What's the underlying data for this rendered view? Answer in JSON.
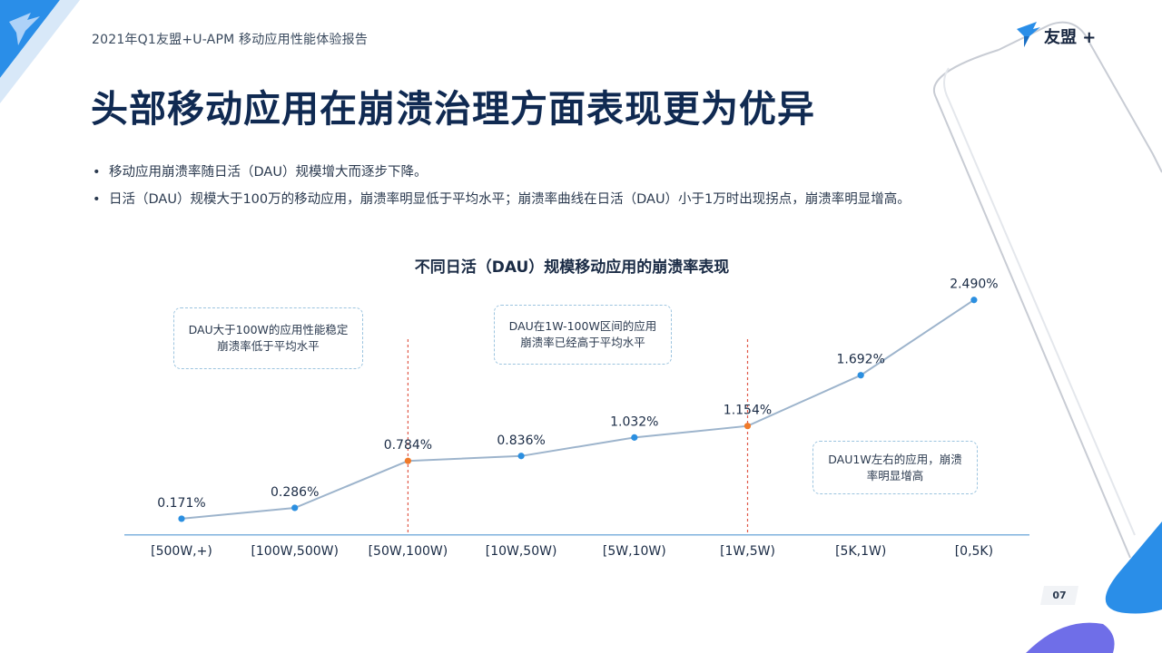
{
  "header": {
    "report_title": "2021年Q1友盟+U-APM 移动应用性能体验报告",
    "brand_name": "友盟 +",
    "page_number": "07"
  },
  "page": {
    "heading": "头部移动应用在崩溃治理方面表现更为优异",
    "bullets": [
      "移动应用崩溃率随日活（DAU）规模增大而逐步下降。",
      "日活（DAU）规模大于100万的移动应用，崩溃率明显低于平均水平；崩溃率曲线在日活（DAU）小于1万时出现拐点，崩溃率明显增高。"
    ]
  },
  "annotations": [
    {
      "lines": [
        "DAU大于100W的应用性能稳定",
        "崩溃率低于平均水平"
      ]
    },
    {
      "lines": [
        "DAU在1W-100W区间的应用",
        "崩溃率已经高于平均水平"
      ]
    },
    {
      "lines": [
        "DAU1W左右的应用，崩溃",
        "率明显增高"
      ]
    }
  ],
  "colors": {
    "line": "#9db4cc",
    "point": "#2b8fe0",
    "highlight_point": "#f07a2a",
    "divider": "#e05a4a",
    "axis": "#7fb2de",
    "accent": "#1f8ff0"
  },
  "chart_data": {
    "type": "line",
    "title": "不同日活（DAU）规模移动应用的崩溃率表现",
    "categories": [
      "[500W,+)",
      "[100W,500W)",
      "[50W,100W)",
      "[10W,50W)",
      "[5W,10W)",
      "[1W,5W)",
      "[5K,1W)",
      "[0,5K)"
    ],
    "series": [
      {
        "values": [
          0.171,
          0.286,
          0.784,
          0.836,
          1.032,
          1.154,
          1.692,
          2.49
        ]
      }
    ],
    "data_labels": [
      "0.171%",
      "0.286%",
      "0.784%",
      "0.836%",
      "1.032%",
      "1.154%",
      "1.692%",
      "2.490%"
    ],
    "highlighted_categories": [
      "[50W,100W)",
      "[1W,5W)"
    ],
    "ylim": [
      0,
      2.7
    ],
    "grid": false,
    "legend": "none"
  }
}
